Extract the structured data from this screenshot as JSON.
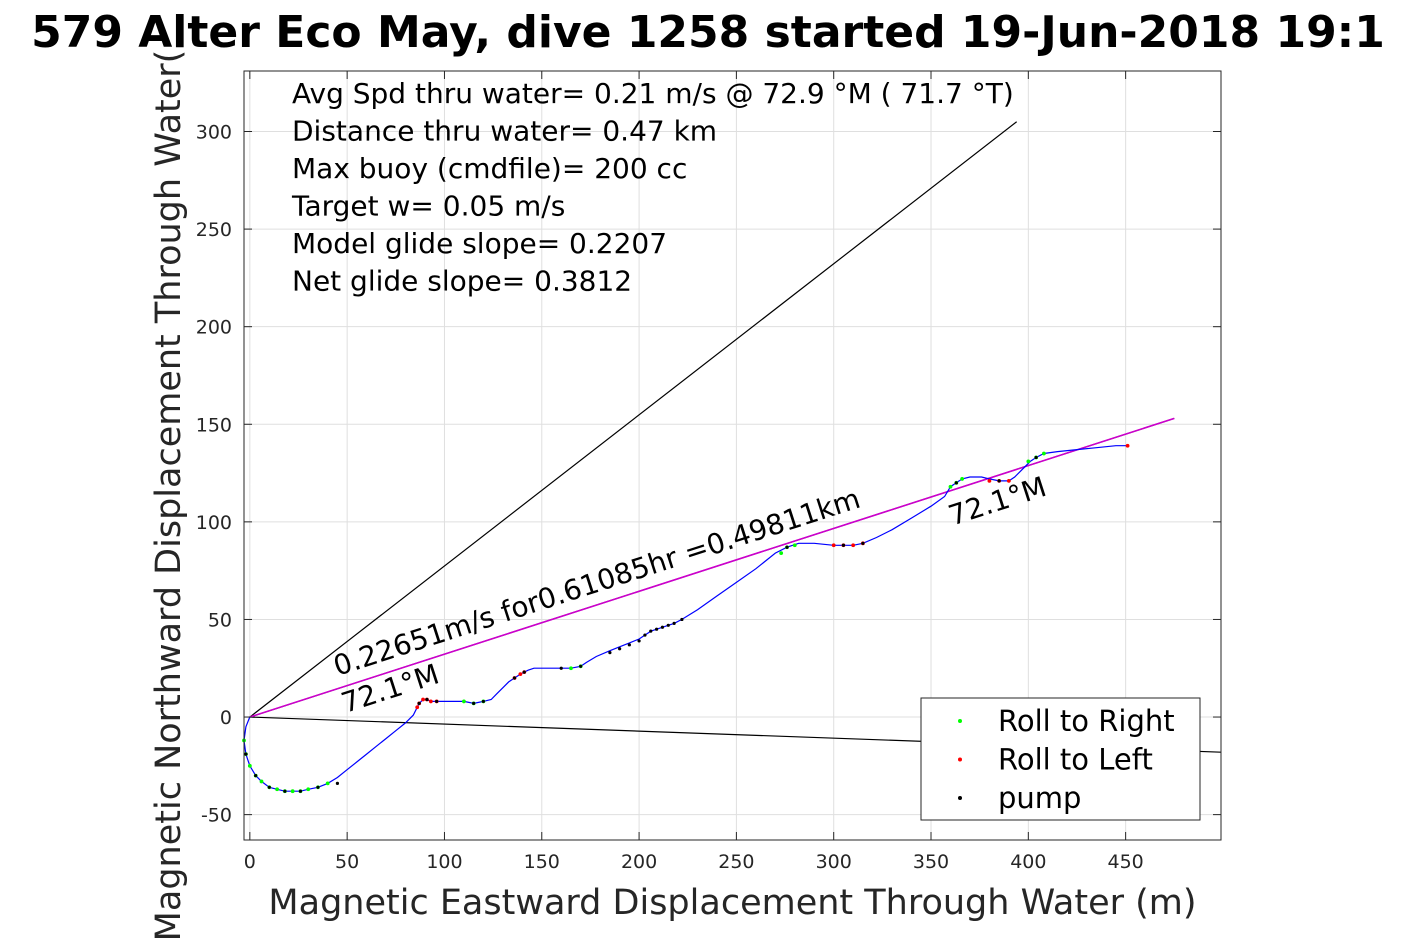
{
  "title": "579 Alter Eco May, dive 1258 started 19-Jun-2018 19:1",
  "chart_data": {
    "type": "line",
    "title": "579 Alter Eco May, dive 1258 started 19-Jun-2018 19:1",
    "xlabel": "Magnetic Eastward Displacement Through Water (m)",
    "ylabel": "Magnetic Northward Displacement Through Water(",
    "xlim": [
      -3,
      499
    ],
    "ylim": [
      -63,
      331
    ],
    "xticks": [
      0,
      50,
      100,
      150,
      200,
      250,
      300,
      350,
      400,
      450
    ],
    "yticks": [
      -50,
      0,
      50,
      100,
      150,
      200,
      250,
      300
    ],
    "grid": true,
    "legend_position": "bottom-right",
    "stats": [
      "Avg Spd thru water=  0.21 m/s @  72.9 °M ( 71.7 °T)",
      "Distance thru water=  0.47 km",
      "Max buoy (cmdfile)= 200 cc",
      "Target w= 0.05 m/s",
      "Model glide slope= 0.2207",
      "Net glide slope= 0.3812"
    ],
    "annotations": {
      "speed_label": "0.22651m/s for0.61085hr =0.49811km",
      "heading_label_start": "72.1°M",
      "heading_label_end": "72.1°M"
    },
    "reference_lines": [
      {
        "name": "upper bound",
        "color": "#000000",
        "x": [
          0,
          394
        ],
        "y": [
          0,
          305
        ]
      },
      {
        "name": "lower bound",
        "color": "#000000",
        "x": [
          0,
          499
        ],
        "y": [
          0,
          -18
        ]
      },
      {
        "name": "mean heading",
        "color": "#000000",
        "x": [
          0,
          475
        ],
        "y": [
          0,
          153
        ]
      },
      {
        "name": "net displacement",
        "color": "#cc00cc",
        "x": [
          0,
          475
        ],
        "y": [
          0,
          153
        ]
      }
    ],
    "track": {
      "color": "#0000ff",
      "x": [
        0,
        -2,
        -3,
        -2,
        0,
        3,
        6,
        10,
        14,
        18,
        22,
        26,
        30,
        35,
        40,
        45,
        50,
        55,
        60,
        65,
        70,
        75,
        80,
        84,
        86,
        87,
        89,
        91,
        93,
        96,
        100,
        105,
        110,
        115,
        120,
        124,
        127,
        130,
        133,
        136,
        139,
        141,
        143,
        146,
        150,
        155,
        160,
        165,
        170,
        173,
        178,
        185,
        190,
        195,
        200,
        203,
        206,
        209,
        212,
        215,
        218,
        222,
        230,
        240,
        250,
        260,
        270,
        276,
        282,
        290,
        300,
        305,
        310,
        315,
        322,
        330,
        340,
        350,
        357,
        360,
        363,
        366,
        370,
        376,
        380,
        385,
        390,
        393,
        397,
        401,
        404,
        408,
        415,
        425,
        435,
        445,
        451
      ],
      "y": [
        0,
        -5,
        -12,
        -19,
        -25,
        -30,
        -33,
        -36,
        -37,
        -38,
        -38,
        -38,
        -37,
        -36,
        -34,
        -31,
        -27,
        -23,
        -19,
        -15,
        -11,
        -7,
        -3,
        1,
        5,
        7,
        9,
        9,
        8,
        8,
        8,
        8,
        8,
        7,
        8,
        9,
        12,
        15,
        18,
        20,
        22,
        23,
        24,
        25,
        25,
        25,
        25,
        25,
        26,
        28,
        31,
        34,
        36,
        38,
        40,
        42,
        44,
        45,
        46,
        47,
        48,
        50,
        55,
        62,
        69,
        76,
        84,
        87,
        89,
        89,
        88,
        88,
        88,
        89,
        92,
        96,
        102,
        108,
        113,
        118,
        120,
        122,
        123,
        123,
        122,
        121,
        121,
        123,
        127,
        131,
        133,
        135,
        136,
        137,
        138,
        139,
        139
      ]
    },
    "series": [
      {
        "name": "Roll to Right",
        "color": "#00ff00",
        "x": [
          -3,
          -2,
          0,
          3,
          6,
          10,
          14,
          18,
          22,
          26,
          30,
          35,
          40,
          110,
          115,
          120,
          165,
          170,
          273,
          276,
          280,
          360,
          363,
          366,
          400,
          404,
          408
        ],
        "y": [
          -12,
          -19,
          -25,
          -30,
          -33,
          -36,
          -37,
          -38,
          -38,
          -38,
          -37,
          -36,
          -34,
          8,
          7,
          8,
          25,
          26,
          84,
          87,
          88,
          118,
          120,
          122,
          131,
          133,
          135
        ]
      },
      {
        "name": "Roll to Left",
        "color": "#ff0000",
        "x": [
          86,
          87,
          89,
          91,
          93,
          96,
          136,
          139,
          141,
          300,
          305,
          310,
          315,
          380,
          385,
          390,
          451
        ],
        "y": [
          5,
          7,
          9,
          9,
          8,
          8,
          20,
          22,
          23,
          88,
          88,
          88,
          89,
          121,
          121,
          121,
          139
        ]
      },
      {
        "name": "pump",
        "color": "#000000",
        "x": [
          -2,
          3,
          10,
          18,
          26,
          35,
          45,
          87,
          91,
          96,
          115,
          120,
          136,
          141,
          160,
          170,
          185,
          190,
          195,
          200,
          203,
          206,
          209,
          212,
          215,
          218,
          222,
          276,
          305,
          315,
          363,
          385,
          404
        ],
        "y": [
          -19,
          -30,
          -36,
          -38,
          -38,
          -36,
          -34,
          7,
          9,
          8,
          7,
          8,
          20,
          23,
          25,
          26,
          33,
          35,
          37,
          39,
          42,
          44,
          45,
          46,
          47,
          48,
          50,
          87,
          88,
          89,
          120,
          121,
          133
        ]
      }
    ],
    "legend": [
      "Roll to Right",
      "Roll to Left",
      "pump"
    ]
  }
}
